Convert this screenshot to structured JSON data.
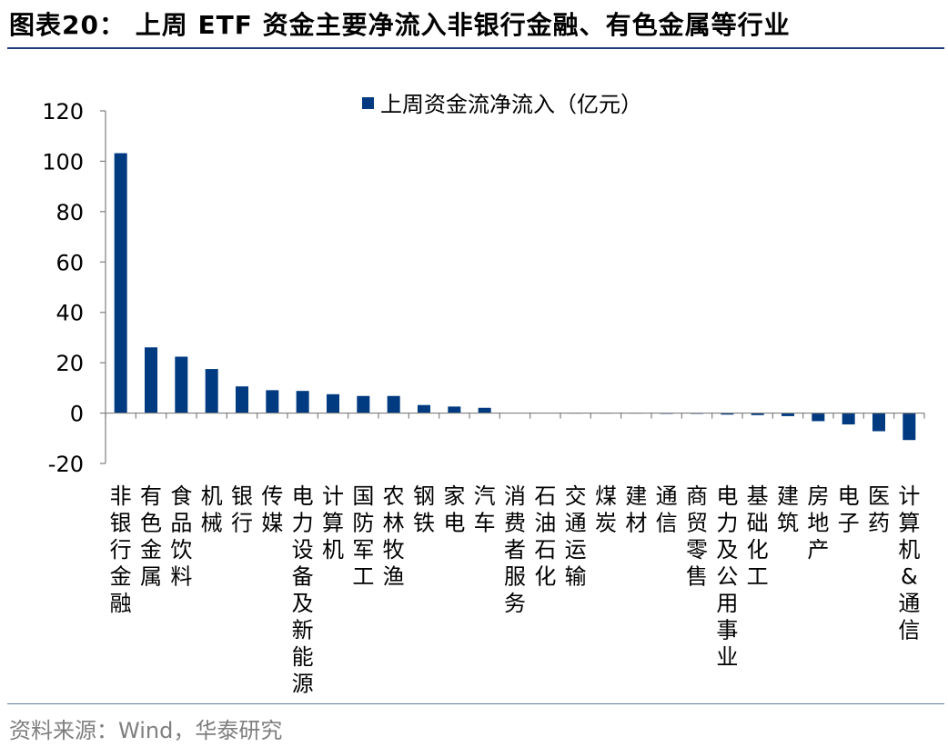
{
  "page": {
    "title": "图表20：  上周 ETF 资金主要净流入非银行金融、有色金属等行业",
    "source": "资料来源：Wind，华泰研究"
  },
  "colors": {
    "bar": "#003a80",
    "axis": "#7f7f7f",
    "rule": "#1f3f7a"
  },
  "chart_data": {
    "type": "bar",
    "legend_position": "top",
    "grid": false,
    "categories": [
      "非银行金融",
      "有色金属",
      "食品饮料",
      "机械",
      "银行",
      "传媒",
      "电力设备及新能源",
      "计算机",
      "国防军工",
      "农林牧渔",
      "钢铁",
      "家电",
      "汽车",
      "消费者服务",
      "石油石化",
      "交通运输",
      "煤炭",
      "建材",
      "通信",
      "商贸零售",
      "电力及公用事业",
      "基础化工",
      "建筑",
      "房地产",
      "电子",
      "医药",
      "计算机&通信"
    ],
    "series": [
      {
        "name": "上周资金流净流入（亿元）",
        "values": [
          103.2,
          26.1,
          22.4,
          17.5,
          10.6,
          9.1,
          8.8,
          7.5,
          6.8,
          6.8,
          3.2,
          2.6,
          2.1,
          0.2,
          0.2,
          0.1,
          0.1,
          0.1,
          -0.1,
          -0.2,
          -0.6,
          -0.8,
          -1.2,
          -3.2,
          -4.5,
          -7.2,
          -10.7
        ]
      }
    ],
    "ylim": [
      -20,
      120
    ],
    "yticks": [
      "-20",
      "0",
      "20",
      "40",
      "60",
      "80",
      "100",
      "120"
    ],
    "ytick_values": [
      -20,
      0,
      20,
      40,
      60,
      80,
      100,
      120
    ]
  }
}
